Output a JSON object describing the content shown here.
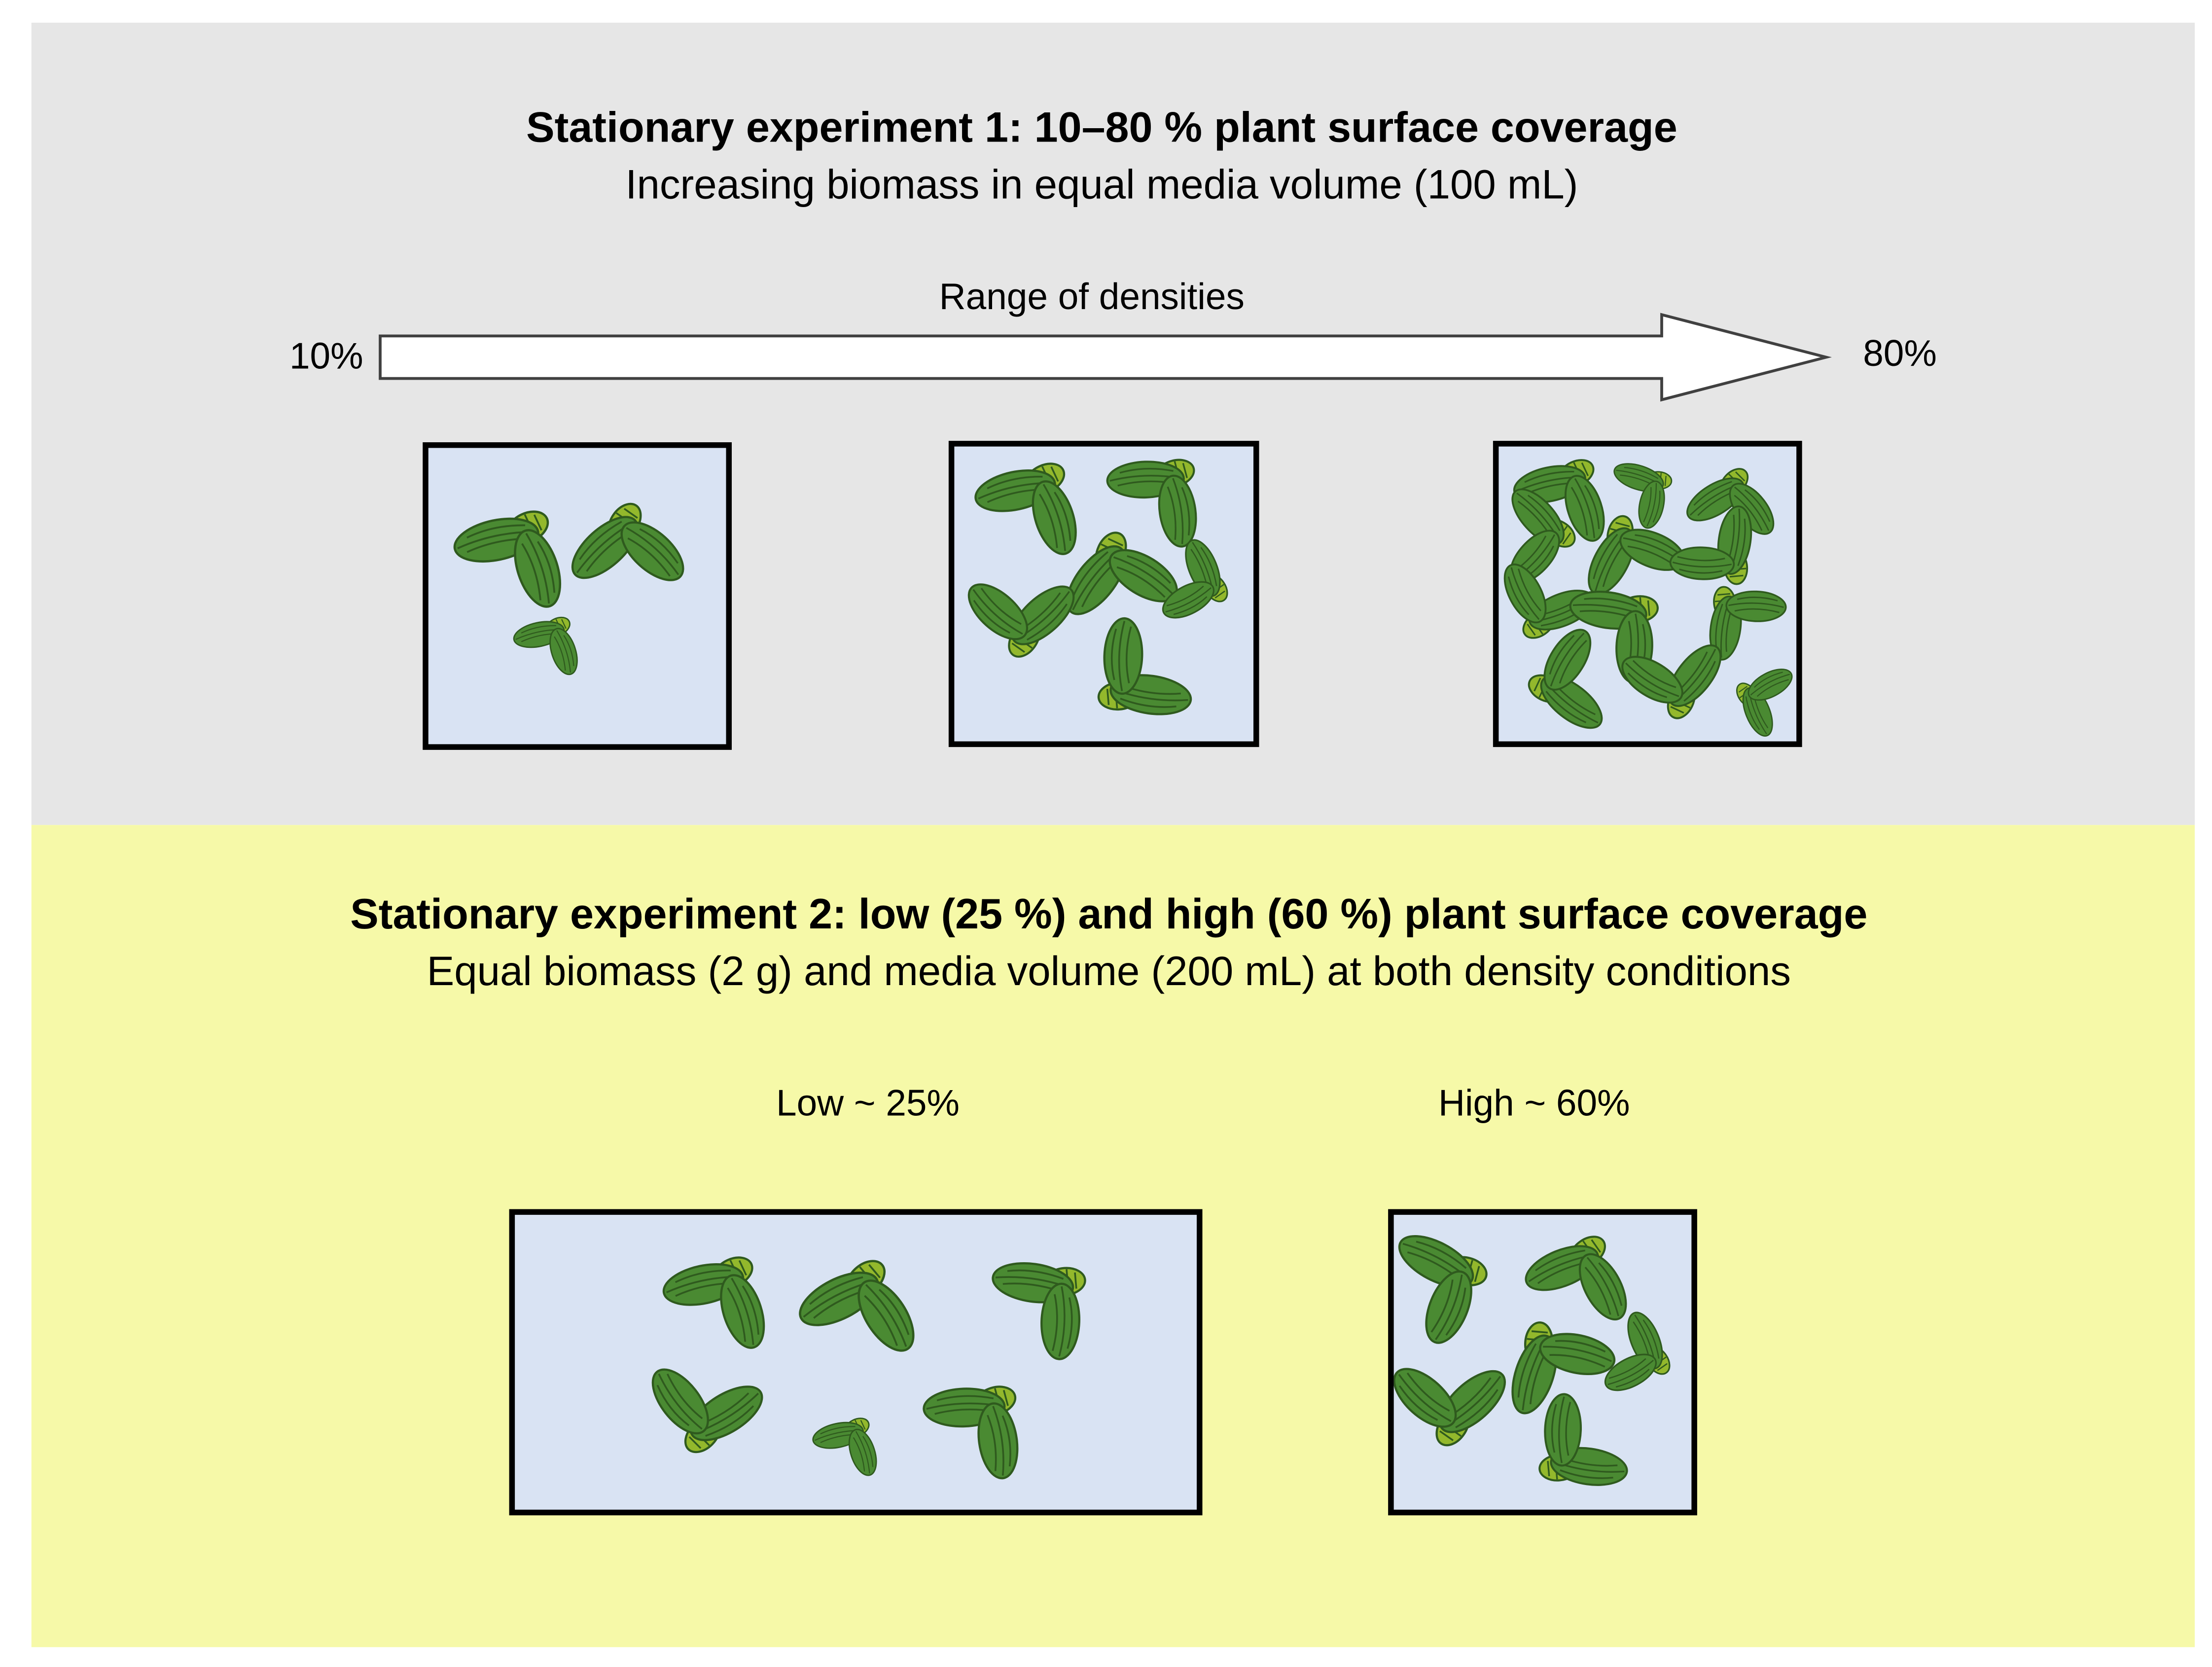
{
  "panel1": {
    "title": "Stationary experiment 1: 10–80 % plant surface coverage",
    "subtitle": "Increasing biomass in equal media volume (100 mL)",
    "arrow_label": "Range of densities",
    "start_label": "10%",
    "end_label": "80%"
  },
  "panel2": {
    "title": "Stationary experiment 2: low (25 %) and high (60 %) plant surface coverage",
    "subtitle": "Equal biomass (2 g) and media volume (200 mL) at both density conditions",
    "low_label": "Low ~ 25%",
    "high_label": "High ~ 60%"
  },
  "colors": {
    "panel1_bg": "#e6e6e6",
    "panel2_bg": "#f6f9a8",
    "water": "#d9e3f3",
    "leaf_dark": "#4a8a32",
    "leaf_light": "#93b82c",
    "leaf_outline": "#2f5a1e",
    "frame": "#000000"
  },
  "icons": {
    "plant": "duckweed-icon",
    "arrow": "right-arrow-icon"
  }
}
